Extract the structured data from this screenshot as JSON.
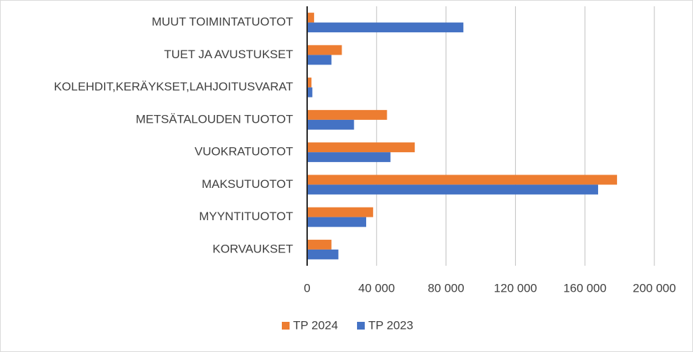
{
  "chart_data": {
    "type": "hbar",
    "categories": [
      "MUUT TOIMINTATUOTOT",
      "TUET JA AVUSTUKSET",
      "KOLEHDIT,KERÄYKSET,LAHJOITUSVARAT",
      "METSÄTALOUDEN TUOTOT",
      "VUOKRATUOTOT",
      "MAKSUTUOTOT",
      "MYYNTITUOTOT",
      "KORVAUKSET"
    ],
    "series": [
      {
        "name": "TP 2024",
        "color": "#ed7d31",
        "values": [
          4000,
          20000,
          2500,
          46000,
          62000,
          178500,
          38000,
          14000
        ]
      },
      {
        "name": "TP 2023",
        "color": "#4472c4",
        "values": [
          90000,
          14000,
          3000,
          27000,
          48000,
          167600,
          34000,
          18000
        ]
      }
    ],
    "xlim": [
      0,
      200000
    ],
    "xticks": [
      0,
      {
        "value": 40000,
        "label": "40 000"
      },
      {
        "value": 80000,
        "label": "80 000"
      },
      {
        "value": 120000,
        "label": "120 000"
      },
      {
        "value": 160000,
        "label": "160 000"
      },
      {
        "value": 200000,
        "label": "200 000"
      }
    ],
    "grid": true,
    "legend": "bottom"
  }
}
